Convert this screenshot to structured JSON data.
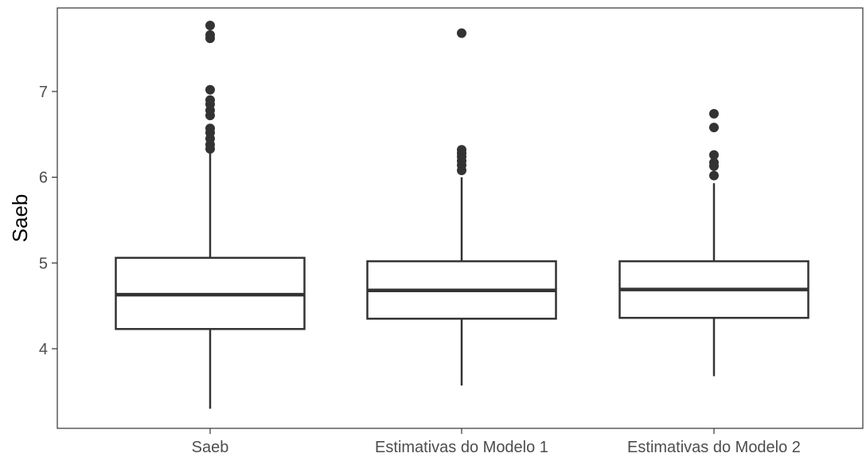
{
  "chart_data": {
    "type": "boxplot",
    "title": "",
    "xlabel": "",
    "ylabel": "Saeb",
    "ylim": [
      3.2,
      7.85
    ],
    "yticks": [
      4,
      5,
      6,
      7
    ],
    "grid": false,
    "categories": [
      "Saeb",
      "Estimativas do Modelo 1",
      "Estimativas do Modelo 2"
    ],
    "boxes": [
      {
        "category": "Saeb",
        "whisker_low": 3.3,
        "q1": 4.23,
        "median": 4.63,
        "q3": 5.06,
        "whisker_high": 6.3,
        "outliers": [
          6.33,
          6.38,
          6.45,
          6.52,
          6.57,
          6.72,
          6.78,
          6.85,
          6.9,
          7.02,
          7.62,
          7.66,
          7.77
        ]
      },
      {
        "category": "Estimativas do Modelo 1",
        "whisker_low": 3.57,
        "q1": 4.35,
        "median": 4.68,
        "q3": 5.02,
        "whisker_high": 6.0,
        "outliers": [
          6.08,
          6.14,
          6.19,
          6.24,
          6.28,
          6.32,
          7.68
        ]
      },
      {
        "category": "Estimativas do Modelo 2",
        "whisker_low": 3.68,
        "q1": 4.36,
        "median": 4.69,
        "q3": 5.02,
        "whisker_high": 5.93,
        "outliers": [
          6.02,
          6.13,
          6.17,
          6.26,
          6.58,
          6.74
        ]
      }
    ],
    "colors": {
      "box_line": "#333333",
      "box_fill": "#ffffff",
      "point": "#333333",
      "panel_border": "#333333"
    }
  }
}
